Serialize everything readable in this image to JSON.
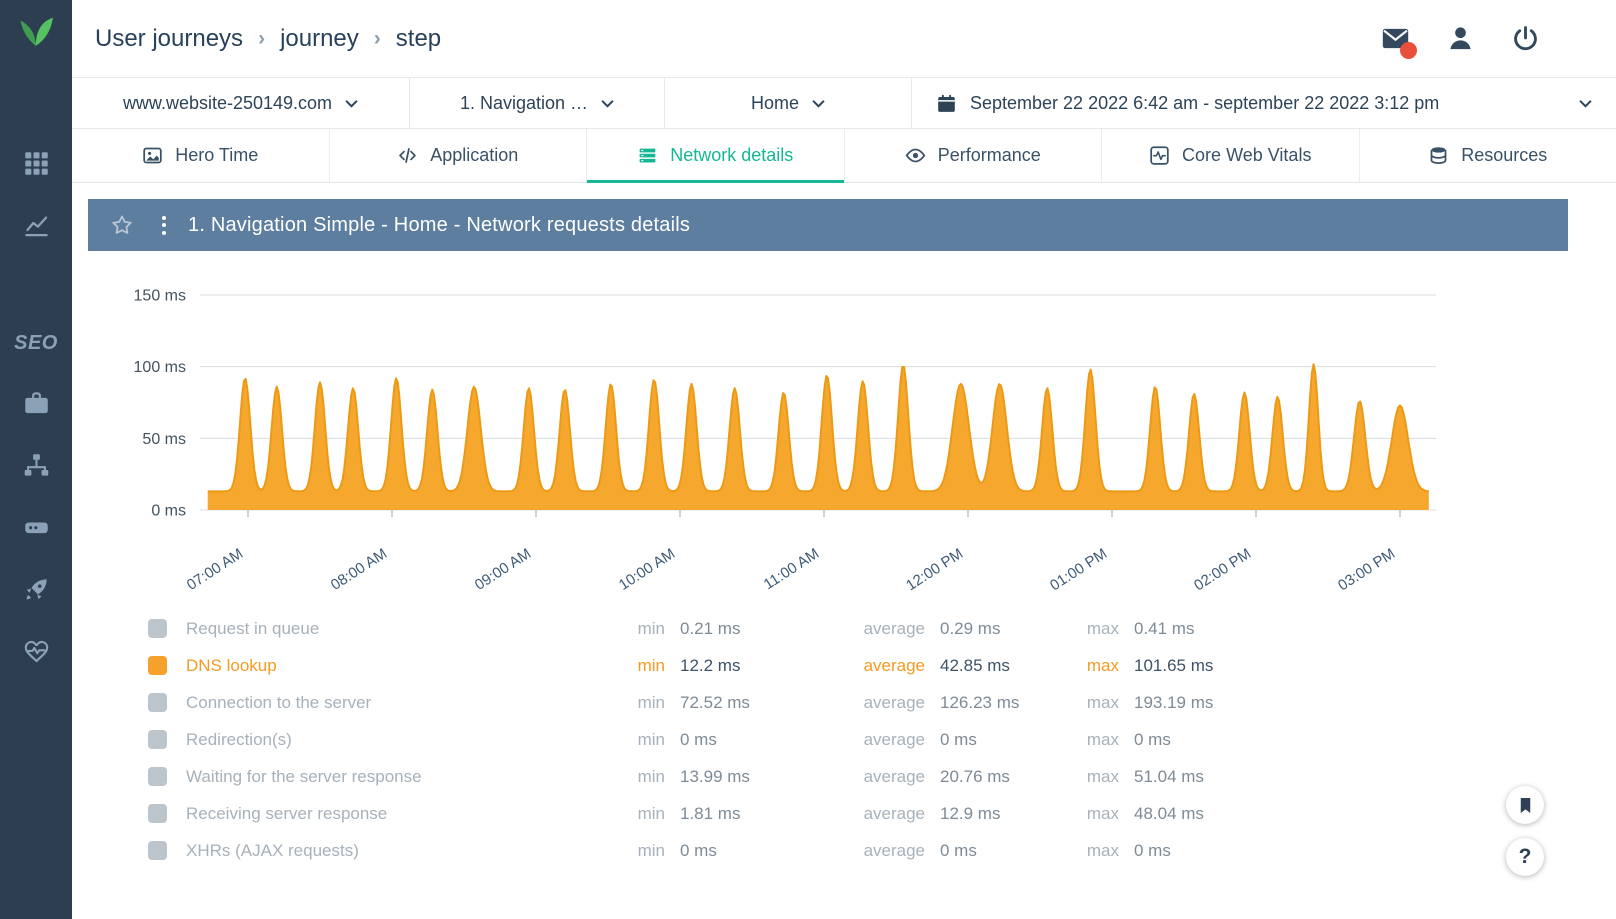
{
  "colors": {
    "sidebar_bg": "#2D3E50",
    "brand_green": "#4DAF54",
    "accent_teal": "#15B795",
    "panel_header_bg": "#5D7E9E",
    "chart_area": "#F6A72E",
    "chart_line": "#EC9A16",
    "selected_orange": "#F59B23",
    "badge_red": "#E8503C"
  },
  "sidebar": {
    "seo_label": "SEO",
    "icons": [
      "leaf-logo-icon",
      "grid-icon",
      "line-chart-icon",
      "briefcase-icon",
      "sitemap-icon",
      "drive-icon",
      "rocket-icon",
      "heart-pulse-icon"
    ]
  },
  "header": {
    "breadcrumb": [
      "User journeys",
      "journey",
      "step"
    ],
    "separator": "›",
    "icons": [
      "mail-icon",
      "user-icon",
      "power-icon"
    ]
  },
  "filters": {
    "website": "www.website-250149.com",
    "journey": "1. Navigation …",
    "step": "Home",
    "date_range": "September 22 2022 6:42 am - september 22 2022 3:12 pm"
  },
  "tabs": [
    {
      "label": "Hero Time",
      "icon": "image-icon",
      "active": false
    },
    {
      "label": "Application",
      "icon": "code-icon",
      "active": false
    },
    {
      "label": "Network details",
      "icon": "list-stack-icon",
      "active": true
    },
    {
      "label": "Performance",
      "icon": "eye-icon",
      "active": false
    },
    {
      "label": "Core Web Vitals",
      "icon": "vitals-waveform-icon",
      "active": false
    },
    {
      "label": "Resources",
      "icon": "database-icon",
      "active": false
    }
  ],
  "panel": {
    "title": "1. Navigation Simple - Home - Network requests details"
  },
  "chart_data": {
    "type": "area",
    "series_name": "DNS lookup",
    "title": "",
    "xlabel": "",
    "ylabel": "ms",
    "ylim": [
      0,
      150
    ],
    "y_tick_values": [
      0,
      50,
      100,
      150
    ],
    "y_tick_labels": [
      "0 ms",
      "50 ms",
      "100 ms",
      "150 ms"
    ],
    "x_tick_hours": [
      7,
      8,
      9,
      10,
      11,
      12,
      13,
      14,
      15
    ],
    "x_tick_labels": [
      "07:00 AM",
      "08:00 AM",
      "09:00 AM",
      "10:00 AM",
      "11:00 AM",
      "12:00 PM",
      "01:00 PM",
      "02:00 PM",
      "03:00 PM"
    ],
    "time_range_hours": [
      6.72,
      15.2
    ],
    "baseline_ms": 13,
    "peaks": [
      [
        6.98,
        92
      ],
      [
        7.2,
        86
      ],
      [
        7.5,
        89
      ],
      [
        7.73,
        85
      ],
      [
        8.03,
        92
      ],
      [
        8.28,
        84
      ],
      [
        8.57,
        86,
        0.065
      ],
      [
        8.95,
        85
      ],
      [
        9.2,
        84
      ],
      [
        9.52,
        88
      ],
      [
        9.82,
        91
      ],
      [
        10.08,
        88
      ],
      [
        10.38,
        85
      ],
      [
        10.72,
        82
      ],
      [
        11.02,
        94
      ],
      [
        11.27,
        90
      ],
      [
        11.55,
        101
      ],
      [
        11.95,
        88,
        0.08
      ],
      [
        12.22,
        88,
        0.07
      ],
      [
        12.55,
        85
      ],
      [
        12.85,
        98
      ],
      [
        13.3,
        86
      ],
      [
        13.57,
        81
      ],
      [
        13.92,
        82
      ],
      [
        14.15,
        79
      ],
      [
        14.4,
        101.65,
        0.045
      ],
      [
        14.72,
        76,
        0.055
      ],
      [
        15.0,
        73,
        0.08
      ]
    ],
    "area_color": "#F6A72E",
    "line_color": "#EC9A16",
    "grid": true,
    "legend_position": "bottom"
  },
  "legend": {
    "stat_labels": {
      "min": "min",
      "average": "average",
      "max": "max"
    },
    "rows": [
      {
        "label": "Request in queue",
        "min": "0.21 ms",
        "average": "0.29 ms",
        "max": "0.41 ms",
        "selected": false
      },
      {
        "label": "DNS lookup",
        "min": "12.2 ms",
        "average": "42.85 ms",
        "max": "101.65 ms",
        "selected": true
      },
      {
        "label": "Connection to the server",
        "min": "72.52 ms",
        "average": "126.23 ms",
        "max": "193.19 ms",
        "selected": false
      },
      {
        "label": "Redirection(s)",
        "min": "0 ms",
        "average": "0 ms",
        "max": "0 ms",
        "selected": false
      },
      {
        "label": "Waiting for the server response",
        "min": "13.99 ms",
        "average": "20.76 ms",
        "max": "51.04 ms",
        "selected": false
      },
      {
        "label": "Receiving server response",
        "min": "1.81 ms",
        "average": "12.9 ms",
        "max": "48.04 ms",
        "selected": false
      },
      {
        "label": "XHRs (AJAX requests)",
        "min": "0 ms",
        "average": "0 ms",
        "max": "0 ms",
        "selected": false
      }
    ]
  },
  "floating": {
    "help_label": "?",
    "icons": [
      "bookmark-icon",
      "question-icon"
    ]
  }
}
